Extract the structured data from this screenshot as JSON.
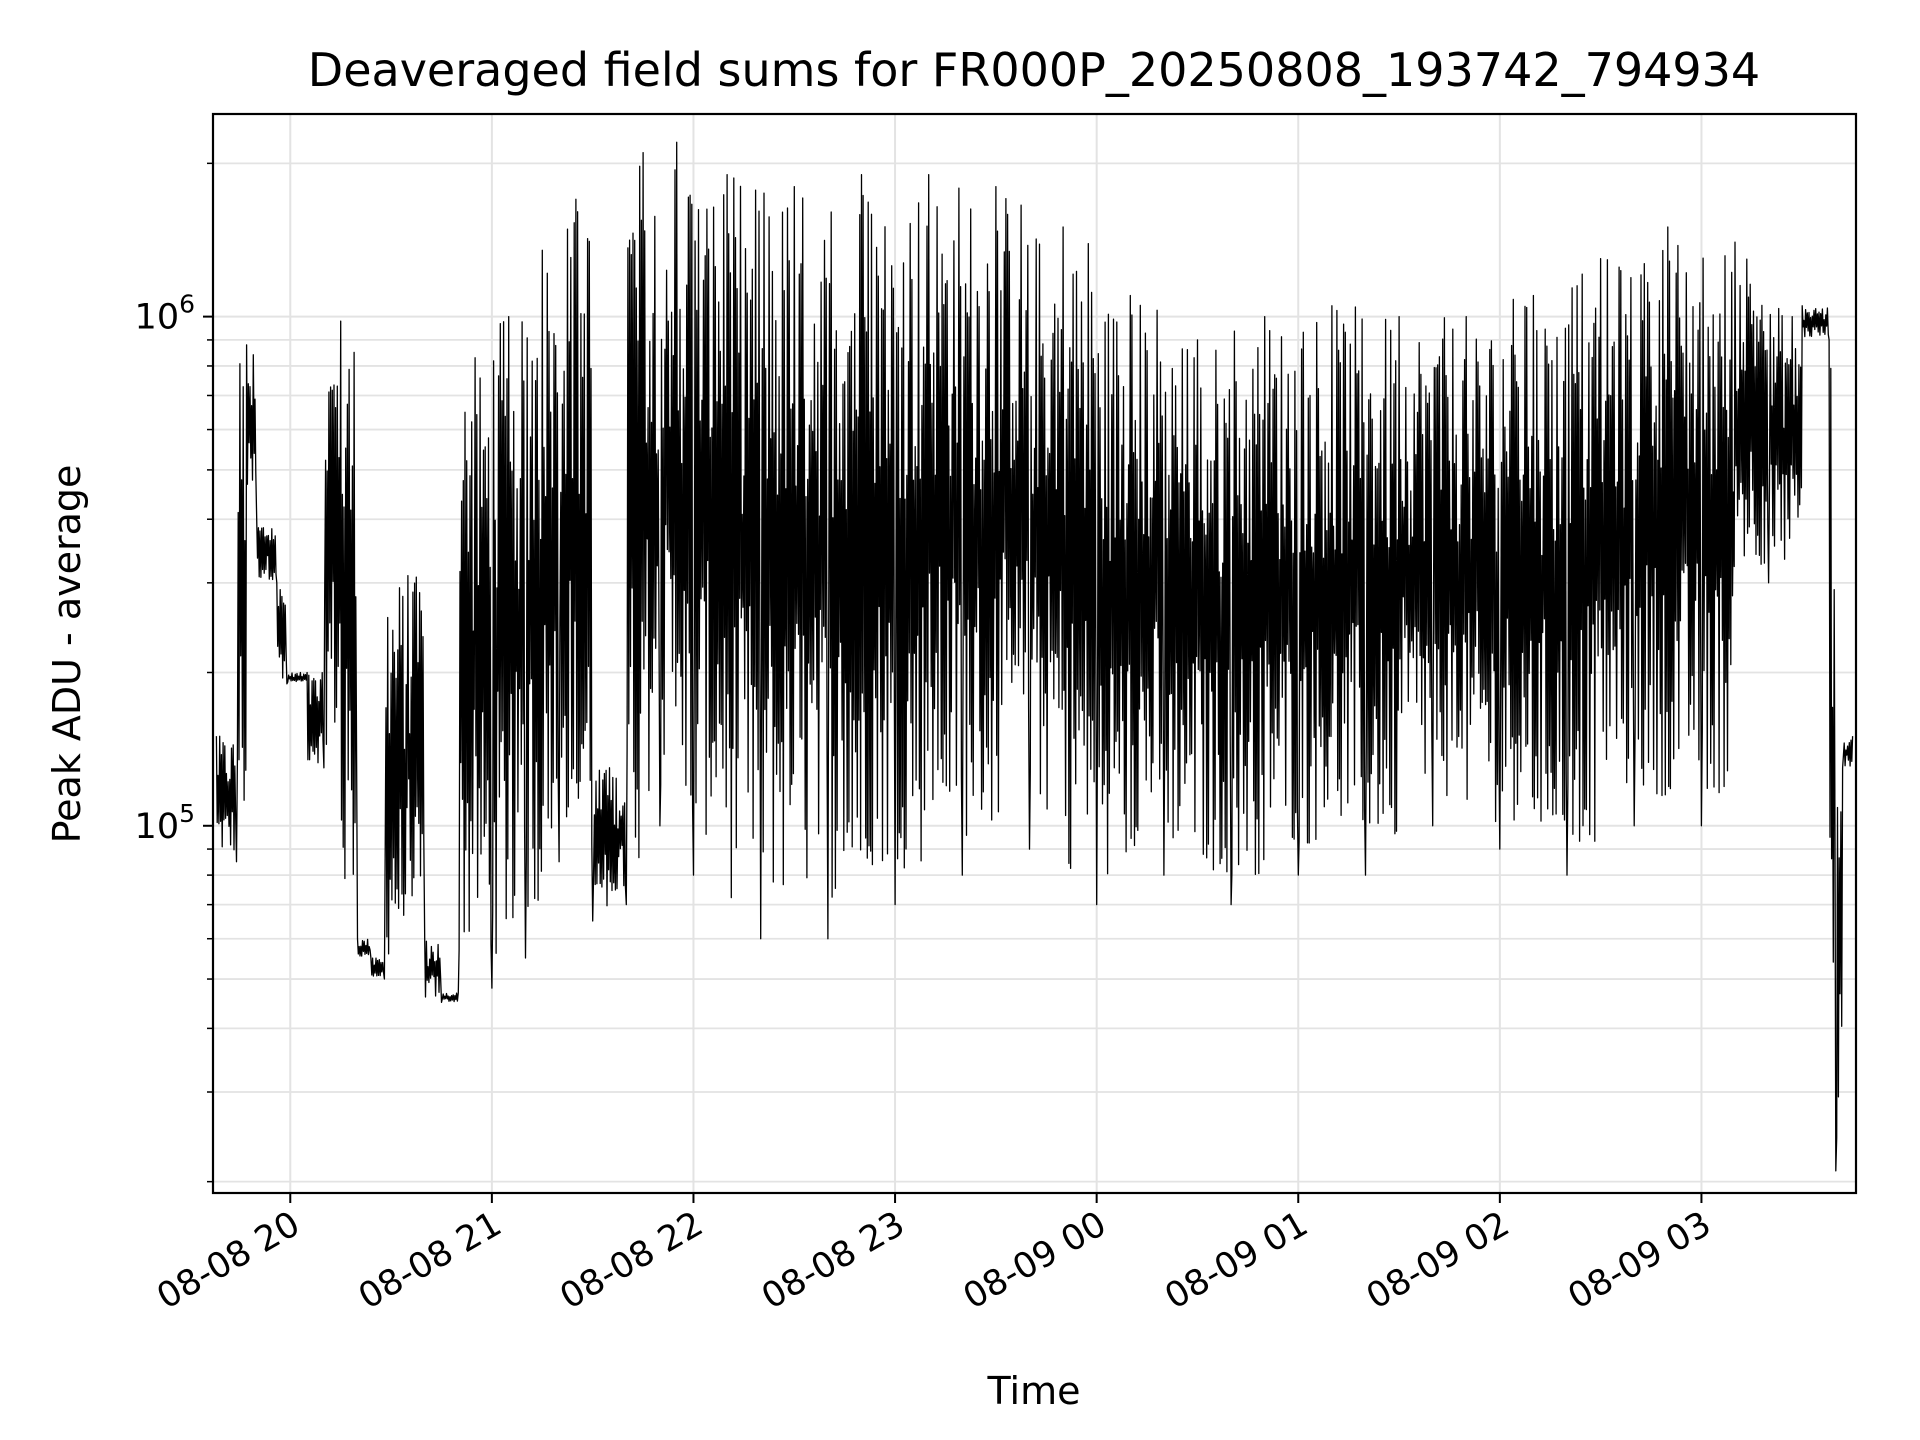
{
  "chart_data": {
    "type": "line",
    "title": "Deaveraged field sums for FR000P_20250808_193742_794934",
    "xlabel": "Time",
    "ylabel": "Peak ADU - average",
    "y_scale": "log",
    "ylim": [
      19000,
      2500000
    ],
    "xlim": [
      "08-08 19:37",
      "08-09 03:46"
    ],
    "grid": true,
    "line_color": "#000000",
    "x_tick_labels": [
      "08-08 20",
      "08-08 21",
      "08-08 22",
      "08-08 23",
      "08-09 00",
      "08-09 01",
      "08-09 02",
      "08-09 03"
    ],
    "x_ticks": [
      "08-08 20:00",
      "08-08 21:00",
      "08-08 22:00",
      "08-08 23:00",
      "08-09 00:00",
      "08-09 01:00",
      "08-09 02:00",
      "08-09 03:00"
    ],
    "y_major_ticks": [
      {
        "value": 100000,
        "base": "10",
        "exp": "5"
      },
      {
        "value": 1000000,
        "base": "10",
        "exp": "6"
      }
    ],
    "series": [
      {
        "x": [
          "08-08 19:38",
          "08-08 19:44",
          "08-08 19:47",
          "08-08 19:50",
          "08-08 19:56",
          "08-08 19:59",
          "08-08 20:05",
          "08-08 20:10",
          "08-08 20:15",
          "08-08 20:20",
          "08-08 20:24",
          "08-08 20:28",
          "08-08 20:35",
          "08-08 20:40",
          "08-08 20:45",
          "08-08 20:50",
          "08-08 20:55",
          "08-08 21:00",
          "08-08 21:05",
          "08-08 21:10",
          "08-08 21:15",
          "08-08 21:20",
          "08-08 21:25",
          "08-08 21:30",
          "08-08 21:35",
          "08-08 21:40",
          "08-08 21:45",
          "08-08 21:50",
          "08-08 21:55",
          "08-08 22:00",
          "08-08 22:10",
          "08-08 22:20",
          "08-08 22:30",
          "08-08 22:40",
          "08-08 22:50",
          "08-08 23:00",
          "08-08 23:10",
          "08-08 23:20",
          "08-08 23:30",
          "08-08 23:40",
          "08-08 23:50",
          "08-09 00:00",
          "08-09 00:10",
          "08-09 00:20",
          "08-09 00:30",
          "08-09 00:40",
          "08-09 00:50",
          "08-09 01:00",
          "08-09 01:10",
          "08-09 01:20",
          "08-09 01:30",
          "08-09 01:40",
          "08-09 01:50",
          "08-09 02:00",
          "08-09 02:10",
          "08-09 02:20",
          "08-09 02:30",
          "08-09 02:40",
          "08-09 02:50",
          "08-09 03:00",
          "08-09 03:10",
          "08-09 03:20",
          "08-09 03:30",
          "08-09 03:38",
          "08-09 03:40",
          "08-09 03:42",
          "08-09 03:45"
        ],
        "y": [
          150000,
          85000,
          880000,
          400000,
          300000,
          190000,
          200000,
          130000,
          980000,
          60000,
          55000,
          50000,
          310000,
          60000,
          45000,
          47000,
          830000,
          48000,
          1000000,
          55000,
          1350000,
          85000,
          1700000,
          65000,
          130000,
          70000,
          2100000,
          100000,
          2200000,
          80000,
          1900000,
          60000,
          1800000,
          60000,
          1900000,
          70000,
          1900000,
          80000,
          1800000,
          90000,
          1500000,
          70000,
          1100000,
          80000,
          900000,
          70000,
          1000000,
          80000,
          1050000,
          80000,
          1000000,
          100000,
          1000000,
          90000,
          1100000,
          80000,
          1300000,
          100000,
          1500000,
          100000,
          1400000,
          300000,
          1050000,
          900000,
          21000,
          130000,
          150000
        ]
      }
    ]
  }
}
